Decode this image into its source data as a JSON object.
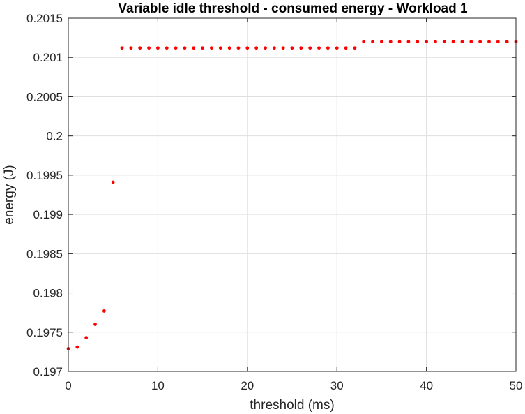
{
  "chart_data": {
    "type": "scatter",
    "title": "Variable idle threshold - consumed energy  - Workload 1",
    "xlabel": "threshold (ms)",
    "ylabel": "energy (J)",
    "xlim": [
      0,
      50
    ],
    "ylim": [
      0.197,
      0.2015
    ],
    "xticks": [
      0,
      10,
      20,
      30,
      40,
      50
    ],
    "xtick_labels": [
      "0",
      "10",
      "20",
      "30",
      "40",
      "50"
    ],
    "yticks": [
      0.197,
      0.1975,
      0.198,
      0.1985,
      0.199,
      0.1995,
      0.2,
      0.2005,
      0.201,
      0.2015
    ],
    "ytick_labels": [
      "0.197",
      "0.1975",
      "0.198",
      "0.1985",
      "0.199",
      "0.1995",
      "0.2",
      "0.2005",
      "0.201",
      "0.2015"
    ],
    "grid": true,
    "marker_color": "#ff0000",
    "x": [
      0,
      1,
      2,
      3,
      4,
      5,
      6,
      7,
      8,
      9,
      10,
      11,
      12,
      13,
      14,
      15,
      16,
      17,
      18,
      19,
      20,
      21,
      22,
      23,
      24,
      25,
      26,
      27,
      28,
      29,
      30,
      31,
      32,
      33,
      34,
      35,
      36,
      37,
      38,
      39,
      40,
      41,
      42,
      43,
      44,
      45,
      46,
      47,
      48,
      49,
      50
    ],
    "y": [
      0.19729,
      0.19731,
      0.19743,
      0.1976,
      0.19777,
      0.19941,
      0.20112,
      0.20112,
      0.20112,
      0.20112,
      0.20112,
      0.20112,
      0.20112,
      0.20112,
      0.20112,
      0.20112,
      0.20112,
      0.20112,
      0.20112,
      0.20112,
      0.20112,
      0.20112,
      0.20112,
      0.20112,
      0.20112,
      0.20112,
      0.20112,
      0.20112,
      0.20112,
      0.20112,
      0.20112,
      0.20112,
      0.20112,
      0.2012,
      0.2012,
      0.2012,
      0.2012,
      0.2012,
      0.2012,
      0.2012,
      0.2012,
      0.2012,
      0.2012,
      0.2012,
      0.2012,
      0.2012,
      0.2012,
      0.2012,
      0.2012,
      0.2012,
      0.2012
    ]
  }
}
